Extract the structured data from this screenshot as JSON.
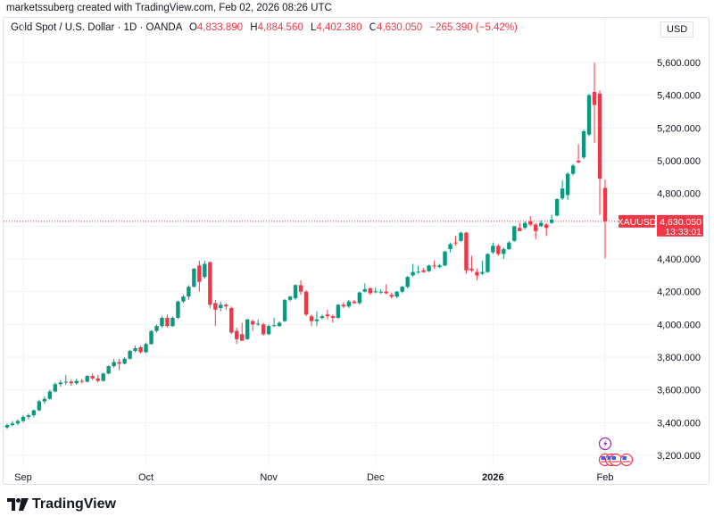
{
  "credit": "marketssuberg created with TradingView.com, Feb 02, 2026 08:26 UTC",
  "legend": {
    "symbol": "Gold Spot / U.S. Dollar · 1D · OANDA",
    "o_label": "O",
    "o": "4,833.890",
    "h_label": "H",
    "h": "4,884.560",
    "l_label": "L",
    "l": "4,402.380",
    "c_label": "C",
    "c": "4,630.050",
    "change": "−265.390 (−5.42%)"
  },
  "currency": "USD",
  "price_tag": {
    "symbol": "XAUUSD",
    "price": "4,630.050",
    "countdown": "13:33:01"
  },
  "logo": "TradingView",
  "colors": {
    "up": "#089981",
    "down": "#f23645",
    "grid": "#f0f3fa",
    "event_purple": "#9c27b0"
  },
  "chart_data": {
    "type": "candlestick",
    "ylim": [
      3150,
      5650
    ],
    "yticks": [
      "3,200.000",
      "3,400.000",
      "3,600.000",
      "3,800.000",
      "4,000.000",
      "4,200.000",
      "4,400.000",
      "4,600.000",
      "4,800.000",
      "5,000.000",
      "5,200.000",
      "5,400.000",
      "5,600.000"
    ],
    "ytick_values": [
      3200,
      3400,
      3600,
      3800,
      4000,
      4200,
      4400,
      4600,
      4800,
      5000,
      5200,
      5400,
      5600
    ],
    "xticks": [
      {
        "label": "Sep",
        "index": 3
      },
      {
        "label": "Oct",
        "index": 26
      },
      {
        "label": "Nov",
        "index": 49
      },
      {
        "label": "Dec",
        "index": 69
      },
      {
        "label": "2026",
        "index": 91,
        "bold": true
      },
      {
        "label": "Feb",
        "index": 112
      }
    ],
    "last_price": 4630.05,
    "ohlc": [
      [
        3370,
        3395,
        3360,
        3385
      ],
      [
        3385,
        3410,
        3378,
        3395
      ],
      [
        3395,
        3420,
        3385,
        3410
      ],
      [
        3410,
        3445,
        3400,
        3435
      ],
      [
        3435,
        3455,
        3420,
        3445
      ],
      [
        3445,
        3480,
        3432,
        3475
      ],
      [
        3475,
        3540,
        3470,
        3530
      ],
      [
        3530,
        3560,
        3515,
        3545
      ],
      [
        3545,
        3600,
        3540,
        3590
      ],
      [
        3590,
        3645,
        3585,
        3635
      ],
      [
        3635,
        3660,
        3620,
        3645
      ],
      [
        3645,
        3690,
        3630,
        3650
      ],
      [
        3650,
        3665,
        3625,
        3640
      ],
      [
        3640,
        3670,
        3630,
        3655
      ],
      [
        3655,
        3668,
        3638,
        3650
      ],
      [
        3650,
        3690,
        3645,
        3685
      ],
      [
        3685,
        3700,
        3660,
        3670
      ],
      [
        3670,
        3690,
        3645,
        3655
      ],
      [
        3655,
        3705,
        3650,
        3700
      ],
      [
        3700,
        3750,
        3695,
        3745
      ],
      [
        3745,
        3790,
        3735,
        3770
      ],
      [
        3770,
        3790,
        3720,
        3760
      ],
      [
        3760,
        3800,
        3755,
        3790
      ],
      [
        3790,
        3845,
        3785,
        3838
      ],
      [
        3838,
        3870,
        3830,
        3855
      ],
      [
        3860,
        3870,
        3820,
        3830
      ],
      [
        3830,
        3890,
        3825,
        3880
      ],
      [
        3880,
        3965,
        3875,
        3960
      ],
      [
        3960,
        4000,
        3950,
        3990
      ],
      [
        3990,
        4050,
        3980,
        4040
      ],
      [
        4040,
        4060,
        3980,
        3990
      ],
      [
        3990,
        4050,
        3985,
        4040
      ],
      [
        4040,
        4145,
        4035,
        4140
      ],
      [
        4140,
        4180,
        4130,
        4170
      ],
      [
        4170,
        4240,
        4150,
        4230
      ],
      [
        4230,
        4345,
        4225,
        4340
      ],
      [
        4360,
        4390,
        4200,
        4260
      ],
      [
        4290,
        4390,
        4280,
        4370
      ],
      [
        4380,
        4385,
        4100,
        4120
      ],
      [
        4130,
        4150,
        3990,
        4090
      ],
      [
        4100,
        4140,
        4080,
        4120
      ],
      [
        4120,
        4130,
        4090,
        4110
      ],
      [
        4100,
        4110,
        3940,
        3950
      ],
      [
        3960,
        3980,
        3880,
        3910
      ],
      [
        3940,
        4010,
        3900,
        3900
      ],
      [
        3910,
        4035,
        3905,
        4030
      ],
      [
        4020,
        4030,
        3960,
        4000
      ],
      [
        4000,
        4030,
        3990,
        4005
      ],
      [
        4000,
        4010,
        3930,
        3940
      ],
      [
        3940,
        4000,
        3935,
        3990
      ],
      [
        3990,
        4040,
        3985,
        3995
      ],
      [
        3990,
        4020,
        3985,
        4010
      ],
      [
        4020,
        4155,
        4015,
        4150
      ],
      [
        4150,
        4175,
        4140,
        4170
      ],
      [
        4160,
        4245,
        4150,
        4240
      ],
      [
        4240,
        4270,
        4180,
        4200
      ],
      [
        4200,
        4210,
        4050,
        4060
      ],
      [
        4050,
        4060,
        3990,
        4020
      ],
      [
        4020,
        4080,
        3990,
        4030
      ],
      [
        4040,
        4060,
        4030,
        4050
      ],
      [
        4060,
        4090,
        4030,
        4050
      ],
      [
        4050,
        4060,
        4010,
        4040
      ],
      [
        4040,
        4125,
        4035,
        4120
      ],
      [
        4120,
        4135,
        4100,
        4110
      ],
      [
        4110,
        4150,
        4100,
        4140
      ],
      [
        4140,
        4150,
        4125,
        4130
      ],
      [
        4130,
        4200,
        4120,
        4195
      ],
      [
        4200,
        4250,
        4195,
        4215
      ],
      [
        4220,
        4225,
        4180,
        4190
      ],
      [
        4200,
        4225,
        4190,
        4202
      ],
      [
        4200,
        4215,
        4185,
        4200
      ],
      [
        4200,
        4245,
        4185,
        4190
      ],
      [
        4180,
        4195,
        4160,
        4170
      ],
      [
        4170,
        4205,
        4160,
        4200
      ],
      [
        4200,
        4235,
        4190,
        4230
      ],
      [
        4230,
        4295,
        4220,
        4290
      ],
      [
        4300,
        4370,
        4290,
        4320
      ],
      [
        4320,
        4360,
        4310,
        4322
      ],
      [
        4330,
        4345,
        4315,
        4320
      ],
      [
        4325,
        4365,
        4320,
        4360
      ],
      [
        4360,
        4390,
        4340,
        4355
      ],
      [
        4350,
        4370,
        4345,
        4360
      ],
      [
        4360,
        4450,
        4355,
        4445
      ],
      [
        4460,
        4500,
        4440,
        4490
      ],
      [
        4500,
        4540,
        4480,
        4495
      ],
      [
        4510,
        4565,
        4505,
        4560
      ],
      [
        4560,
        4565,
        4310,
        4330
      ],
      [
        4340,
        4420,
        4320,
        4330
      ],
      [
        4320,
        4340,
        4270,
        4300
      ],
      [
        4310,
        4390,
        4300,
        4320
      ],
      [
        4320,
        4435,
        4315,
        4430
      ],
      [
        4440,
        4500,
        4430,
        4480
      ],
      [
        4480,
        4490,
        4420,
        4430
      ],
      [
        4430,
        4470,
        4400,
        4460
      ],
      [
        4460,
        4510,
        4455,
        4500
      ],
      [
        4510,
        4600,
        4505,
        4600
      ],
      [
        4590,
        4620,
        4570,
        4570
      ],
      [
        4590,
        4630,
        4580,
        4620
      ],
      [
        4630,
        4660,
        4600,
        4610
      ],
      [
        4610,
        4620,
        4520,
        4570
      ],
      [
        4600,
        4635,
        4595,
        4620
      ],
      [
        4610,
        4620,
        4540,
        4590
      ],
      [
        4620,
        4670,
        4615,
        4640
      ],
      [
        4665,
        4770,
        4660,
        4765
      ],
      [
        4770,
        4880,
        4760,
        4830
      ],
      [
        4790,
        4930,
        4760,
        4920
      ],
      [
        4920,
        4980,
        4910,
        4970
      ],
      [
        5000,
        5100,
        4985,
        4990
      ],
      [
        5020,
        5190,
        5010,
        5180
      ],
      [
        5160,
        5410,
        5150,
        5400
      ],
      [
        5420,
        5600,
        5110,
        5340
      ],
      [
        5410,
        5430,
        4670,
        4890
      ],
      [
        4833.89,
        4884.56,
        4402.38,
        4630.05
      ]
    ]
  }
}
